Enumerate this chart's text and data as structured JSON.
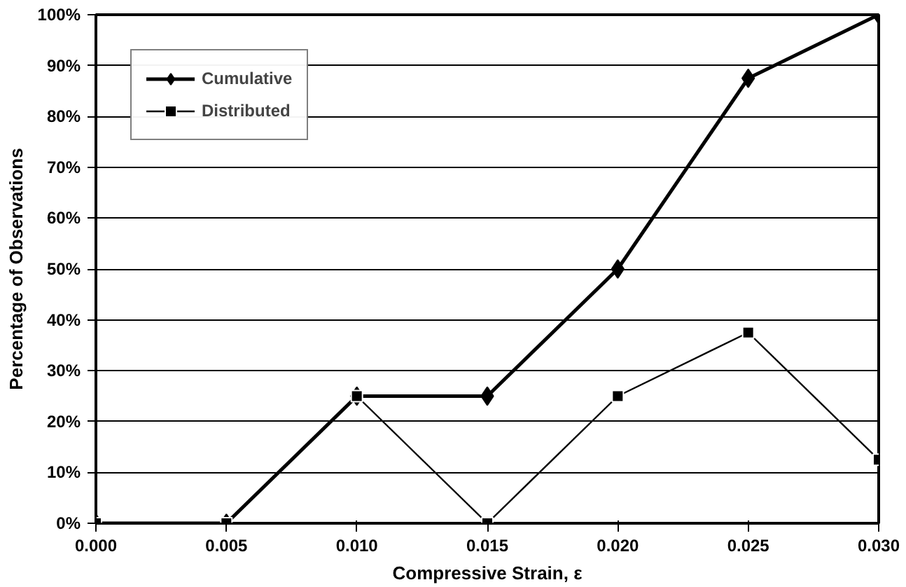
{
  "chart_data": {
    "type": "line",
    "xlabel": "Compressive Strain, ε",
    "ylabel": "Percentage of Observations",
    "x": [
      0.0,
      0.005,
      0.01,
      0.015,
      0.02,
      0.025,
      0.03
    ],
    "series": [
      {
        "name": "Cumulative",
        "color": "#000000",
        "marker": "diamond",
        "values": [
          0,
          0,
          25,
          25,
          50,
          87.5,
          100
        ]
      },
      {
        "name": "Distributed",
        "color": "#000000",
        "marker": "square",
        "values": [
          0,
          0,
          25,
          0,
          25,
          37.5,
          12.5
        ]
      }
    ],
    "xlim": [
      0,
      0.03
    ],
    "ylim": [
      0,
      100
    ],
    "xticks": [
      {
        "value": 0,
        "label": "0.000"
      },
      {
        "value": 0.005,
        "label": "0.005"
      },
      {
        "value": 0.01,
        "label": "0.010"
      },
      {
        "value": 0.015,
        "label": "0.015"
      },
      {
        "value": 0.02,
        "label": "0.020"
      },
      {
        "value": 0.025,
        "label": "0.025"
      },
      {
        "value": 0.03,
        "label": "0.030"
      }
    ],
    "yticks": [
      {
        "value": 0,
        "label": "0%"
      },
      {
        "value": 10,
        "label": "10%"
      },
      {
        "value": 20,
        "label": "20%"
      },
      {
        "value": 30,
        "label": "30%"
      },
      {
        "value": 40,
        "label": "40%"
      },
      {
        "value": 50,
        "label": "50%"
      },
      {
        "value": 60,
        "label": "60%"
      },
      {
        "value": 70,
        "label": "70%"
      },
      {
        "value": 80,
        "label": "80%"
      },
      {
        "value": 90,
        "label": "90%"
      },
      {
        "value": 100,
        "label": "100%"
      }
    ],
    "grid": "y",
    "legend": "top left",
    "line_style": "solid"
  }
}
